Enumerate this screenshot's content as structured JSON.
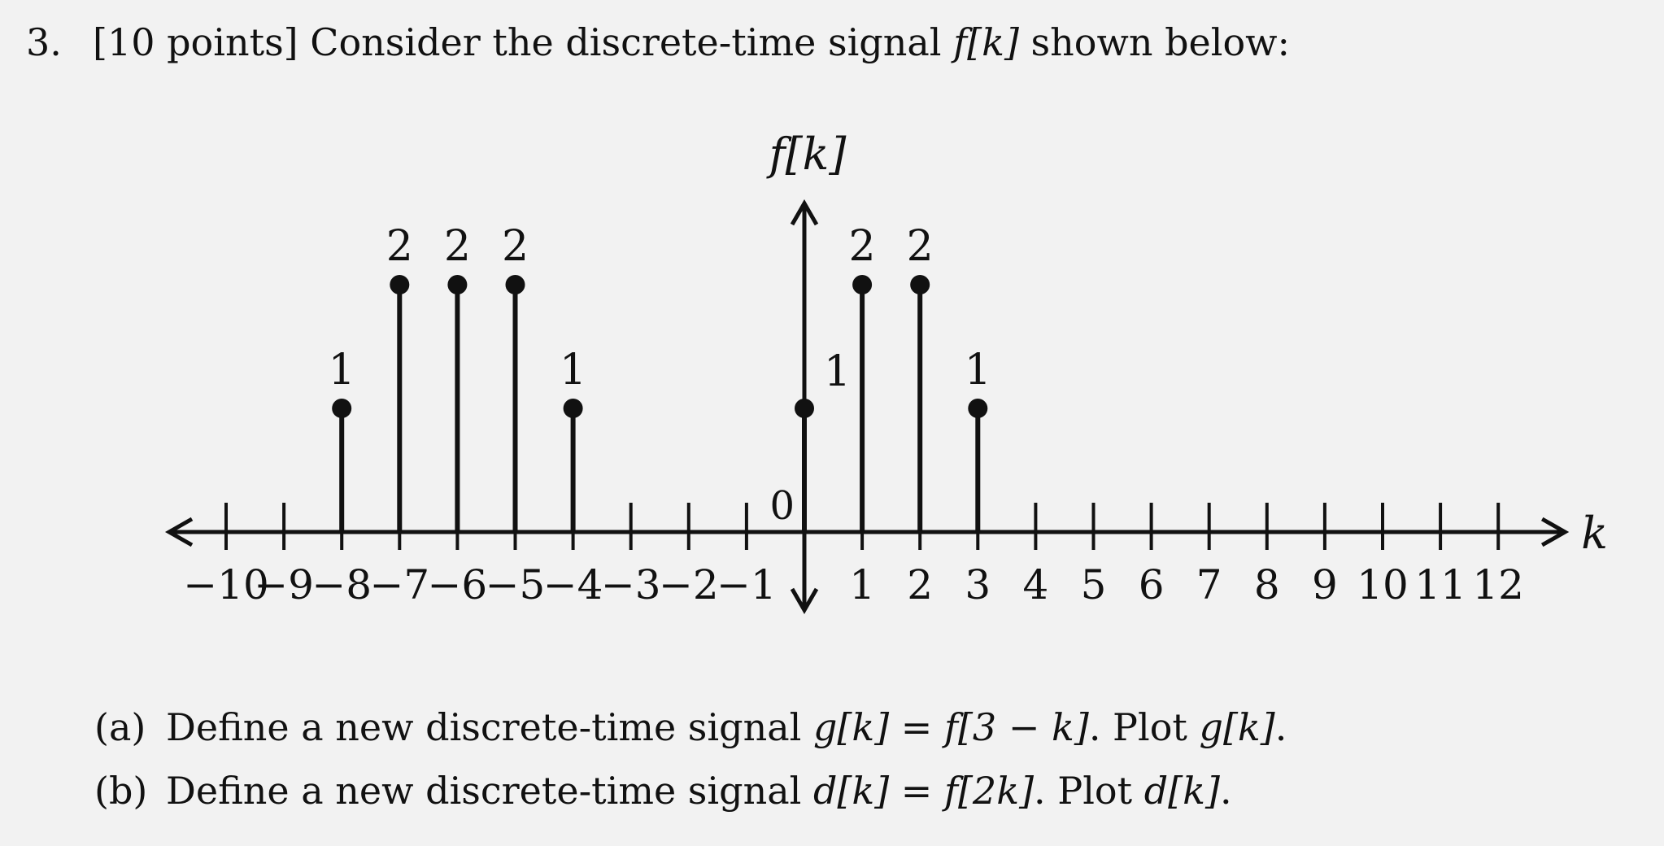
{
  "problem": {
    "number": "3.",
    "points": "[10 points]",
    "intro": "Consider the discrete-time signal",
    "signal": "f[k]",
    "outro": "shown below:"
  },
  "parts": [
    {
      "label": "(a)",
      "text": "Define a new discrete-time signal",
      "definition": "g[k] = f[3 − k]",
      "plot_word": ". Plot",
      "target": "g[k]",
      "end": "."
    },
    {
      "label": "(b)",
      "text": "Define a new discrete-time signal",
      "definition": "d[k] = f[2k]",
      "plot_word": ". Plot",
      "target": "d[k]",
      "end": "."
    }
  ],
  "chart_data": {
    "type": "stem",
    "ylabel": "f[k]",
    "xlabel": "k",
    "origin_label": "0",
    "x": [
      -8,
      -7,
      -6,
      -5,
      -4,
      0,
      1,
      2,
      3
    ],
    "values": [
      1,
      2,
      2,
      2,
      1,
      1,
      2,
      2,
      1
    ],
    "value_labels": [
      "1",
      "2",
      "2",
      "2",
      "1",
      "1",
      "2",
      "2",
      "1"
    ],
    "xticks": [
      -10,
      -9,
      -8,
      -7,
      -6,
      -5,
      -4,
      -3,
      -2,
      -1,
      1,
      2,
      3,
      4,
      5,
      6,
      7,
      8,
      9,
      10,
      11,
      12
    ],
    "xtick_labels": [
      "−10",
      "−9",
      "−8",
      "−7",
      "−6",
      "−5",
      "−4",
      "−3",
      "−2",
      "−1",
      "1",
      "2",
      "3",
      "4",
      "5",
      "6",
      "7",
      "8",
      "9",
      "10",
      "11",
      "12"
    ],
    "xlim": [
      -10,
      12
    ],
    "ylim": [
      0,
      2
    ],
    "grid": false
  }
}
